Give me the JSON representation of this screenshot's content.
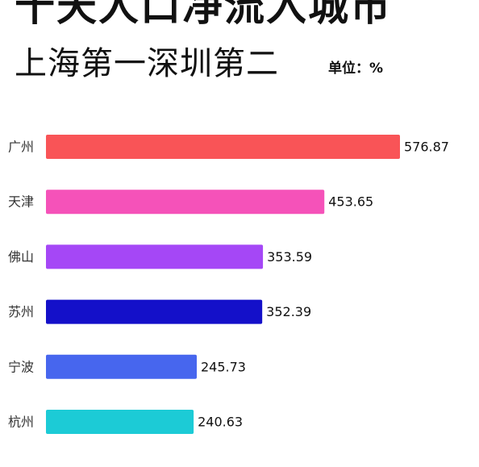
{
  "chart_data": {
    "type": "bar",
    "orientation": "horizontal",
    "title": "十天人口净流入城市",
    "subtitle": "上海第一深圳第二",
    "unit_label": "单位：%",
    "categories": [
      "广州",
      "天津",
      "佛山",
      "苏州",
      "宁波",
      "杭州"
    ],
    "values": [
      576.87,
      453.65,
      353.59,
      352.39,
      245.73,
      240.63
    ],
    "value_labels": [
      "576.87",
      "453.65",
      "353.59",
      "352.39",
      "245.73",
      "240.63"
    ],
    "colors": [
      "#f95457",
      "#f552b9",
      "#a547f6",
      "#1410c9",
      "#4766ee",
      "#1ccbd6"
    ],
    "xlim": [
      0,
      576.87
    ],
    "grid": false,
    "legend": "none"
  }
}
